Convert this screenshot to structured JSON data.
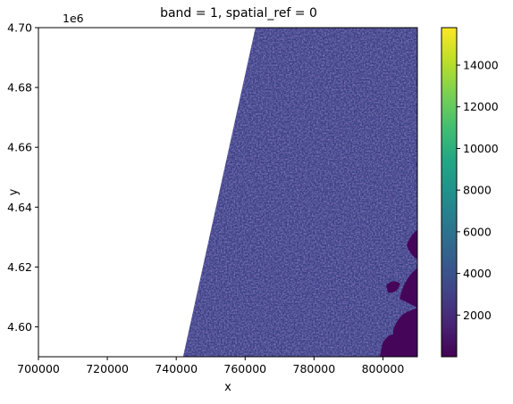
{
  "chart_data": {
    "type": "heatmap",
    "title": "band = 1, spatial_ref = 0",
    "xlabel": "x",
    "ylabel": "y",
    "xlim": [
      700000,
      810000
    ],
    "ylim": [
      4590000,
      4700000
    ],
    "x_ticks": [
      700000,
      720000,
      740000,
      760000,
      780000,
      800000
    ],
    "x_tick_labels": [
      "700000",
      "720000",
      "740000",
      "760000",
      "780000",
      "800000"
    ],
    "y_ticks": [
      4600000,
      4620000,
      4640000,
      4660000,
      4680000,
      4700000
    ],
    "y_tick_labels": [
      "4.60",
      "4.62",
      "4.64",
      "4.66",
      "4.68",
      "4.70"
    ],
    "y_offset_label": "1e6",
    "colormap": "viridis",
    "colorbar": {
      "min": 0,
      "max": 15800,
      "ticks": [
        2000,
        4000,
        6000,
        8000,
        10000,
        12000,
        14000
      ],
      "tick_labels": [
        "2000",
        "4000",
        "6000",
        "8000",
        "10000",
        "12000",
        "14000"
      ]
    },
    "data_extent": {
      "left_edge_at_ymax_x": 763000,
      "left_edge_at_ymin_x": 742000
    },
    "typical_value_range": [
      600,
      3000
    ],
    "grid": false
  }
}
